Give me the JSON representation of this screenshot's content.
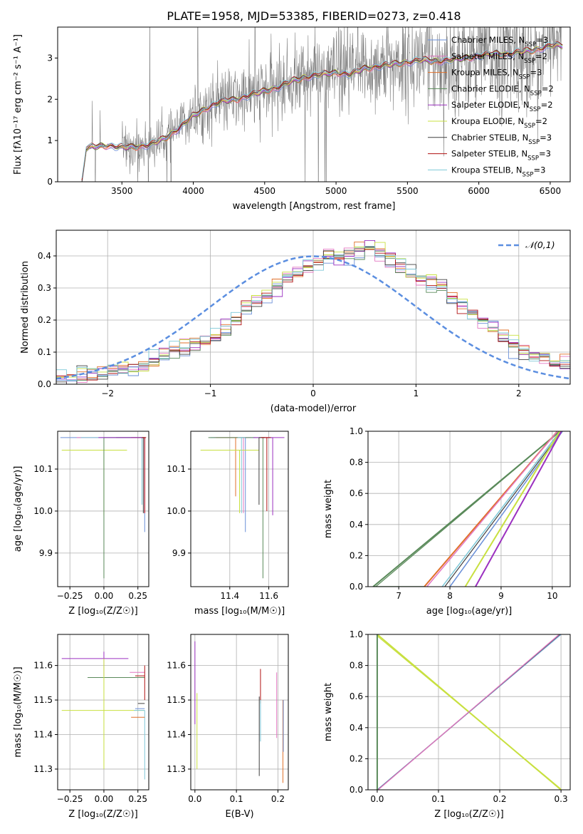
{
  "figure": {
    "title": "PLATE=1958, MJD=53385, FIBERID=0273, z=0.418",
    "colors": {
      "chabrier_miles": "#6a8fd8",
      "salpeter_miles": "#e377c2",
      "kroupa_miles": "#e0702a",
      "chabrier_elodie": "#5a8a5a",
      "salpeter_elodie": "#9b30c0",
      "kroupa_elodie": "#c8e040",
      "chabrier_stelib": "#404040",
      "salpeter_stelib": "#b01010",
      "kroupa_stelib": "#7ec8d8",
      "data": "#808080",
      "gaussian": "#5b8ee0"
    }
  },
  "chart_data": [
    {
      "type": "line",
      "id": "spectrum",
      "xlabel": "wavelength [Angstrom, rest frame]",
      "ylabel": "Flux [fλ10⁻¹⁷ erg cm⁻² s⁻¹ A⁻¹]",
      "xlim": [
        3050,
        6640
      ],
      "ylim": [
        0,
        3.75
      ],
      "xticks": [
        3500,
        4000,
        4500,
        5000,
        5500,
        6000,
        6500
      ],
      "yticks": [
        0,
        1,
        2,
        3
      ],
      "grid": false,
      "legend_position": "top-right",
      "legend": [
        "Chabrier MILES, N_SSP=3",
        "Salpeter MILES, N_SSP=2",
        "Kroupa MILES, N_SSP=3",
        "Chabrier ELODIE, N_SSP=2",
        "Salpeter ELODIE, N_SSP=2",
        "Kroupa ELODIE, N_SSP=2",
        "Chabrier STELIB, N_SSP=3",
        "Salpeter STELIB, N_SSP=3",
        "Kroupa STELIB, N_SSP=3"
      ],
      "model_continuum": {
        "x": [
          3220,
          3250,
          3300,
          3400,
          3500,
          3600,
          3700,
          3800,
          3900,
          4000,
          4100,
          4200,
          4300,
          4400,
          4500,
          4600,
          4700,
          4800,
          4900,
          5000,
          5100,
          5200,
          5300,
          5400,
          5500,
          5600,
          5700,
          5800,
          5900,
          6000,
          6100,
          6200,
          6300,
          6400,
          6500
        ],
        "y": [
          0.0,
          0.8,
          0.85,
          0.88,
          0.83,
          0.85,
          0.9,
          1.05,
          1.3,
          1.6,
          1.8,
          1.95,
          2.0,
          2.1,
          2.2,
          2.3,
          2.45,
          2.55,
          2.6,
          2.65,
          2.6,
          2.75,
          2.8,
          2.85,
          2.9,
          2.95,
          2.92,
          2.95,
          3.0,
          3.05,
          3.1,
          3.1,
          3.15,
          3.2,
          3.3
        ]
      }
    },
    {
      "type": "line",
      "id": "residuals",
      "xlabel": "(data-model)/error",
      "ylabel": "Normed distribution",
      "xlim": [
        -2.5,
        2.5
      ],
      "ylim": [
        0,
        0.48
      ],
      "xticks": [
        -2,
        -1,
        0,
        1,
        2
      ],
      "yticks": [
        0.0,
        0.1,
        0.2,
        0.3,
        0.4
      ],
      "grid": true,
      "legend_position": "top-right",
      "legend": [
        "𝒩(0,1)"
      ],
      "histogram_bin_width": 0.1,
      "histogram_mean_values": [
        0.02,
        0.02,
        0.03,
        0.03,
        0.03,
        0.04,
        0.04,
        0.05,
        0.06,
        0.07,
        0.09,
        0.1,
        0.11,
        0.12,
        0.13,
        0.15,
        0.17,
        0.2,
        0.24,
        0.26,
        0.27,
        0.3,
        0.33,
        0.35,
        0.37,
        0.38,
        0.4,
        0.4,
        0.41,
        0.42,
        0.43,
        0.41,
        0.39,
        0.37,
        0.35,
        0.33,
        0.32,
        0.3,
        0.27,
        0.25,
        0.23,
        0.2,
        0.18,
        0.15,
        0.13,
        0.11,
        0.09,
        0.08,
        0.07,
        0.06
      ]
    },
    {
      "type": "scatter",
      "id": "age_vs_Z",
      "xlabel": "Z [log₁₀(Z/Z☉)]",
      "ylabel": "age  [log₁₀(age/yr)]",
      "xlim": [
        -0.34,
        0.33
      ],
      "ylim": [
        9.82,
        10.19
      ],
      "xticks": [
        -0.25,
        0.0,
        0.25
      ],
      "yticks": [
        9.9,
        10.0,
        10.1
      ],
      "grid": true
    },
    {
      "type": "scatter",
      "id": "age_vs_mass",
      "xlabel": "mass [log₁₀(M/M☉)]",
      "ylabel": "",
      "xlim": [
        11.2,
        11.7
      ],
      "ylim": [
        9.82,
        10.19
      ],
      "xticks": [
        11.4,
        11.6
      ],
      "yticks": [
        9.9,
        10.0,
        10.1
      ],
      "grid": true
    },
    {
      "type": "line",
      "id": "mass_weight_vs_age",
      "xlabel": "age  [log₁₀(age/yr)]",
      "ylabel": "mass weight",
      "xlim": [
        6.4,
        10.35
      ],
      "ylim": [
        0,
        1.0
      ],
      "xticks": [
        7,
        8,
        9,
        10
      ],
      "yticks": [
        0.0,
        0.2,
        0.4,
        0.6,
        0.8,
        1.0
      ],
      "grid": true
    },
    {
      "type": "scatter",
      "id": "mass_vs_Z",
      "xlabel": "Z [log₁₀(Z/Z☉)]",
      "ylabel": "mass [log₁₀(M/M☉)]",
      "xlim": [
        -0.34,
        0.33
      ],
      "ylim": [
        11.24,
        11.69
      ],
      "xticks": [
        -0.25,
        0.0,
        0.25
      ],
      "yticks": [
        11.3,
        11.4,
        11.5,
        11.6
      ],
      "grid": true
    },
    {
      "type": "scatter",
      "id": "mass_vs_ebv",
      "xlabel": "E(B-V)",
      "ylabel": "",
      "xlim": [
        -0.01,
        0.225
      ],
      "ylim": [
        11.24,
        11.69
      ],
      "xticks": [
        0.0,
        0.1,
        0.2
      ],
      "yticks": [
        11.3,
        11.4,
        11.5,
        11.6
      ],
      "grid": true
    },
    {
      "type": "line",
      "id": "mass_weight_vs_Z",
      "xlabel": "Z [log₁₀(Z/Z☉)]",
      "ylabel": "mass weight",
      "xlim": [
        -0.015,
        0.315
      ],
      "ylim": [
        0,
        1.0
      ],
      "xticks": [
        0.0,
        0.1,
        0.2,
        0.3
      ],
      "yticks": [
        0.0,
        0.2,
        0.4,
        0.6,
        0.8,
        1.0
      ],
      "grid": true
    }
  ]
}
